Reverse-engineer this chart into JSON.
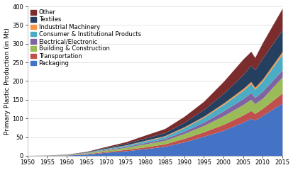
{
  "years": [
    1950,
    1955,
    1960,
    1965,
    1970,
    1975,
    1980,
    1985,
    1990,
    1995,
    2000,
    2005,
    2007,
    2008,
    2010,
    2015
  ],
  "sectors": [
    "Packaging",
    "Transportation",
    "Building & Construction",
    "Electrical/Electronic",
    "Consumer & Institutional Products",
    "Industrial Machinery",
    "Textiles",
    "Other"
  ],
  "colors": [
    "#4472C4",
    "#C0504D",
    "#9BBB59",
    "#8064A2",
    "#4BACC6",
    "#F79646",
    "#243F60",
    "#7B2C2C"
  ],
  "data": {
    "Packaging": [
      0.3,
      0.7,
      1.7,
      4.0,
      9.0,
      13.0,
      18.5,
      25.0,
      37.0,
      52.0,
      68.0,
      90.0,
      100.0,
      95.0,
      108.0,
      141.0
    ],
    "Transportation": [
      0.1,
      0.2,
      0.4,
      1.2,
      2.2,
      3.5,
      5.0,
      6.5,
      9.5,
      12.0,
      16.0,
      19.0,
      21.0,
      18.0,
      19.0,
      27.0
    ],
    "Building & Construction": [
      0.1,
      0.2,
      0.8,
      2.0,
      4.0,
      5.5,
      8.0,
      9.5,
      13.0,
      17.0,
      23.0,
      28.0,
      30.0,
      26.0,
      27.0,
      43.0
    ],
    "Electrical/Electronic": [
      0.05,
      0.1,
      0.3,
      0.8,
      1.8,
      2.5,
      3.5,
      4.5,
      6.5,
      9.0,
      13.0,
      16.0,
      18.0,
      17.0,
      19.0,
      19.0
    ],
    "Consumer & Institutional Products": [
      0.1,
      0.2,
      0.4,
      1.0,
      2.0,
      3.0,
      4.5,
      6.0,
      9.0,
      13.0,
      17.0,
      22.0,
      24.0,
      22.0,
      27.0,
      42.0
    ],
    "Industrial Machinery": [
      0.02,
      0.05,
      0.1,
      0.3,
      0.6,
      1.0,
      1.5,
      2.0,
      2.5,
      3.0,
      4.0,
      5.0,
      5.5,
      5.0,
      5.5,
      7.0
    ],
    "Textiles": [
      0.05,
      0.1,
      0.3,
      1.0,
      2.5,
      4.0,
      6.0,
      8.0,
      12.0,
      18.0,
      26.0,
      37.0,
      44.0,
      47.0,
      56.0,
      58.0
    ],
    "Other": [
      0.05,
      0.1,
      0.3,
      1.0,
      2.5,
      4.5,
      8.0,
      11.0,
      16.0,
      22.0,
      32.0,
      42.0,
      37.0,
      33.0,
      42.0,
      58.0
    ]
  },
  "ylabel": "Primary Plastic Production (in Mt)",
  "ylim": [
    0,
    400
  ],
  "xlim": [
    1950,
    2015
  ],
  "yticks": [
    0,
    50,
    100,
    150,
    200,
    250,
    300,
    350,
    400
  ],
  "xticks": [
    1950,
    1955,
    1960,
    1965,
    1970,
    1975,
    1980,
    1985,
    1990,
    1995,
    2000,
    2005,
    2010,
    2015
  ],
  "background_color": "#FFFFFF",
  "grid_color": "#D9D9D9",
  "legend_fontsize": 6.0,
  "axis_fontsize": 6.5,
  "tick_fontsize": 6.0
}
